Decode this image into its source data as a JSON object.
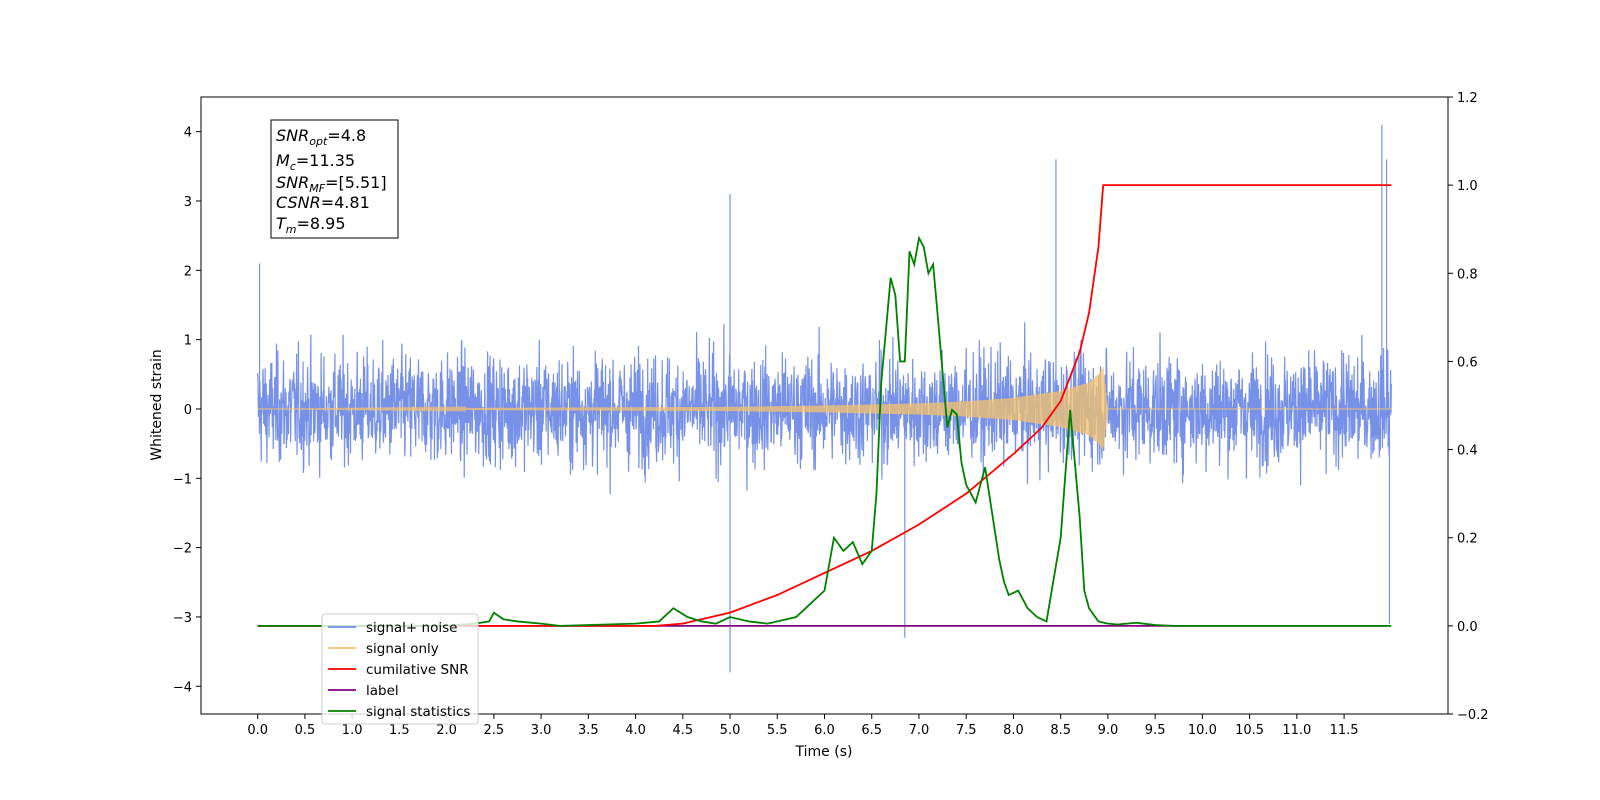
{
  "chart_data": {
    "type": "line",
    "xlabel": "Time (s)",
    "ylabel": "Whitened strain",
    "xlim": [
      -0.6,
      12.6
    ],
    "ylim_left": [
      -4.4,
      4.5
    ],
    "ylim_right": [
      -0.2,
      1.2
    ],
    "x_ticks": [
      0.0,
      0.5,
      1.0,
      1.5,
      2.0,
      2.5,
      3.0,
      3.5,
      4.0,
      4.5,
      5.0,
      5.5,
      6.0,
      6.5,
      7.0,
      7.5,
      8.0,
      8.5,
      9.0,
      9.5,
      10.0,
      10.5,
      11.0,
      11.5
    ],
    "x_tick_labels": [
      "0.0",
      "0.5",
      "1.0",
      "1.5",
      "2.0",
      "2.5",
      "3.0",
      "3.5",
      "4.0",
      "4.5",
      "5.0",
      "5.5",
      "6.0",
      "6.5",
      "7.0",
      "7.5",
      "8.0",
      "8.5",
      "9.0",
      "9.5",
      "10.0",
      "10.5",
      "11.0",
      "11.5"
    ],
    "y_ticks_left": [
      -4,
      -3,
      -2,
      -1,
      0,
      1,
      2,
      3,
      4
    ],
    "y_tick_labels_left": [
      "−4",
      "−3",
      "−2",
      "−1",
      "0",
      "1",
      "2",
      "3",
      "4"
    ],
    "y_ticks_right": [
      -0.2,
      0.0,
      0.2,
      0.4,
      0.6,
      0.8,
      1.0,
      1.2
    ],
    "y_tick_labels_right": [
      "−0.2",
      "0.0",
      "0.2",
      "0.4",
      "0.6",
      "0.8",
      "1.0",
      "1.2"
    ],
    "grid": false,
    "legend_position": "lower-left",
    "series": [
      {
        "name": "signal+ noise",
        "axis": "left",
        "color": "#6f8be6",
        "style": "noise",
        "x_range": [
          0.0,
          12.0
        ],
        "envelope": 1.6,
        "spikes": [
          [
            0.02,
            2.1
          ],
          [
            5.0,
            -3.8
          ],
          [
            5.0,
            3.1
          ],
          [
            6.85,
            -3.3
          ],
          [
            8.45,
            3.6
          ],
          [
            11.9,
            4.1
          ],
          [
            11.95,
            3.6
          ],
          [
            11.98,
            -3.1
          ]
        ]
      },
      {
        "name": "signal only",
        "axis": "left",
        "color": "#f5c26b",
        "style": "chirp",
        "x": [
          0.0,
          5.0,
          6.0,
          7.0,
          7.5,
          8.0,
          8.5,
          8.8,
          8.9,
          8.95,
          9.0,
          12.0
        ],
        "y": [
          0.0,
          0.03,
          0.05,
          0.08,
          0.11,
          0.16,
          0.26,
          0.38,
          0.5,
          0.6,
          0.0,
          0.0
        ]
      },
      {
        "name": "cumilative SNR",
        "axis": "right",
        "color": "#ff0000",
        "x": [
          0.0,
          4.2,
          4.5,
          5.0,
          5.5,
          6.0,
          6.5,
          7.0,
          7.5,
          8.0,
          8.3,
          8.5,
          8.7,
          8.8,
          8.9,
          8.95,
          12.0
        ],
        "y": [
          0.0,
          0.0,
          0.005,
          0.03,
          0.07,
          0.12,
          0.17,
          0.23,
          0.3,
          0.39,
          0.45,
          0.51,
          0.62,
          0.71,
          0.86,
          1.0,
          1.0
        ]
      },
      {
        "name": "label",
        "axis": "right",
        "color": "#800080",
        "x": [
          0.0,
          11.95
        ],
        "y": [
          0.0,
          0.0
        ]
      },
      {
        "name": "signal statistics",
        "axis": "right",
        "color": "#008000",
        "x": [
          0.0,
          2.0,
          2.3,
          2.45,
          2.5,
          2.6,
          2.75,
          3.0,
          3.2,
          4.0,
          4.25,
          4.4,
          4.55,
          4.7,
          4.85,
          5.0,
          5.2,
          5.4,
          5.7,
          5.85,
          6.0,
          6.1,
          6.2,
          6.3,
          6.4,
          6.5,
          6.55,
          6.6,
          6.7,
          6.75,
          6.8,
          6.85,
          6.9,
          6.95,
          7.0,
          7.05,
          7.1,
          7.15,
          7.2,
          7.3,
          7.35,
          7.4,
          7.45,
          7.5,
          7.6,
          7.7,
          7.8,
          7.85,
          7.9,
          7.95,
          8.05,
          8.15,
          8.25,
          8.35,
          8.5,
          8.6,
          8.7,
          8.75,
          8.8,
          8.9,
          9.0,
          9.1,
          9.3,
          9.5,
          9.7,
          10.0,
          12.0
        ],
        "y": [
          0.0,
          0.0,
          0.005,
          0.01,
          0.03,
          0.015,
          0.01,
          0.005,
          0.0,
          0.005,
          0.01,
          0.04,
          0.02,
          0.01,
          0.005,
          0.02,
          0.01,
          0.005,
          0.02,
          0.05,
          0.08,
          0.2,
          0.17,
          0.19,
          0.14,
          0.17,
          0.3,
          0.55,
          0.79,
          0.75,
          0.6,
          0.6,
          0.85,
          0.82,
          0.88,
          0.86,
          0.8,
          0.82,
          0.7,
          0.45,
          0.49,
          0.48,
          0.37,
          0.32,
          0.28,
          0.36,
          0.22,
          0.15,
          0.1,
          0.07,
          0.08,
          0.04,
          0.02,
          0.01,
          0.2,
          0.49,
          0.25,
          0.08,
          0.04,
          0.01,
          0.005,
          0.003,
          0.007,
          0.002,
          0.0,
          0.0,
          0.0
        ]
      }
    ]
  },
  "info_box": {
    "line1_main": "SNR",
    "line1_sub": "opt",
    "line1_value": "=4.8",
    "line2_main": "M",
    "line2_sub": "c",
    "line2_value": "=11.35",
    "line3_main": "SNR",
    "line3_sub": "MF",
    "line3_value": "=[5.51]",
    "line4_main": "CSNR",
    "line4_value": "=4.81",
    "line5_main": "T",
    "line5_sub": "m",
    "line5_value": "=8.95"
  },
  "legend": {
    "items": [
      {
        "label": "signal+ noise",
        "color": "#6f8be6"
      },
      {
        "label": "signal only",
        "color": "#f5c26b"
      },
      {
        "label": "cumilative SNR",
        "color": "#ff0000"
      },
      {
        "label": "label",
        "color": "#800080"
      },
      {
        "label": "signal statistics",
        "color": "#008000"
      }
    ]
  }
}
